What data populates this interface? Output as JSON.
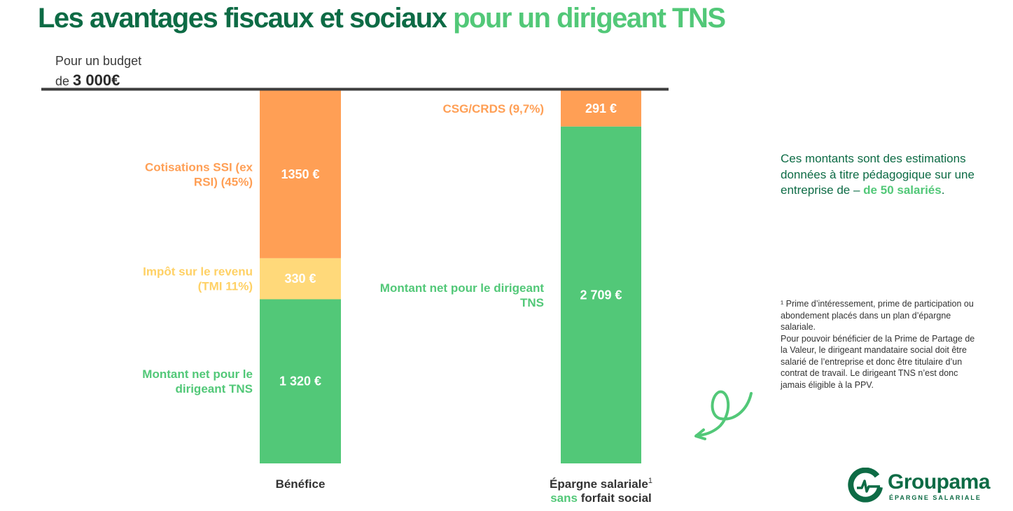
{
  "title": {
    "part1": "Les avantages fiscaux et sociaux",
    "part2": "pour un dirigeant TNS"
  },
  "budget": {
    "line1": "Pour un budget",
    "prefix": "de",
    "amount": "3 000€"
  },
  "colors": {
    "orange": "#ff9f55",
    "yellow": "#ffd97a",
    "green": "#52c878",
    "dark_green": "#0d6b45",
    "baseline": "#3d3d3d"
  },
  "chart_data": {
    "type": "bar",
    "stacked": true,
    "total": 3000,
    "bars": [
      {
        "category": "Bénéfice",
        "segments": [
          {
            "label": "Montant net pour le dirigeant TNS",
            "value": 1320,
            "value_text": "1 320 €",
            "color": "#52c878",
            "label_color": "#52c878",
            "value_color": "#ffffff"
          },
          {
            "label": "Impôt sur le revenu (TMI 11%)",
            "value": 330,
            "value_text": "330 €",
            "color": "#ffd97a",
            "label_color": "#ffd165",
            "value_color": "#ffffff"
          },
          {
            "label": "Cotisations SSI (ex RSI) (45%)",
            "value": 1350,
            "value_text": "1350 €",
            "color": "#ff9f55",
            "label_color": "#ff9f55",
            "value_color": "#ffffff"
          }
        ]
      },
      {
        "category": "Épargne salariale",
        "superscript": "1",
        "category_line2_accent": "sans",
        "category_line2_rest": "forfait social",
        "segments": [
          {
            "label": "Montant net pour le dirigeant TNS",
            "value": 2709,
            "value_text": "2 709 €",
            "color": "#52c878",
            "label_color": "#52c878",
            "value_color": "#ffffff"
          },
          {
            "label": "CSG/CRDS (9,7%)",
            "value": 291,
            "value_text": "291 €",
            "color": "#ff9f55",
            "label_color": "#ff9f55",
            "value_color": "#ffffff"
          }
        ]
      }
    ]
  },
  "note": {
    "text": "Ces montants sont des estimations données à titre pédagogique sur une entreprise de",
    "dash": "–",
    "highlight": "de 50 salariés",
    "end": "."
  },
  "footnote": {
    "p1": "¹ Prime d’intéressement, prime de participation ou abondement placés dans un plan d’épargne salariale.",
    "p2": "Pour pouvoir bénéficier de la Prime de Partage de la Valeur, le dirigeant mandataire social doit être salarié de l’entreprise et donc être titulaire d’un contrat de travail. Le dirigeant TNS n’est donc jamais éligible à la PPV."
  },
  "logo": {
    "name": "Groupama",
    "subtitle": "ÉPARGNE SALARIALE"
  }
}
